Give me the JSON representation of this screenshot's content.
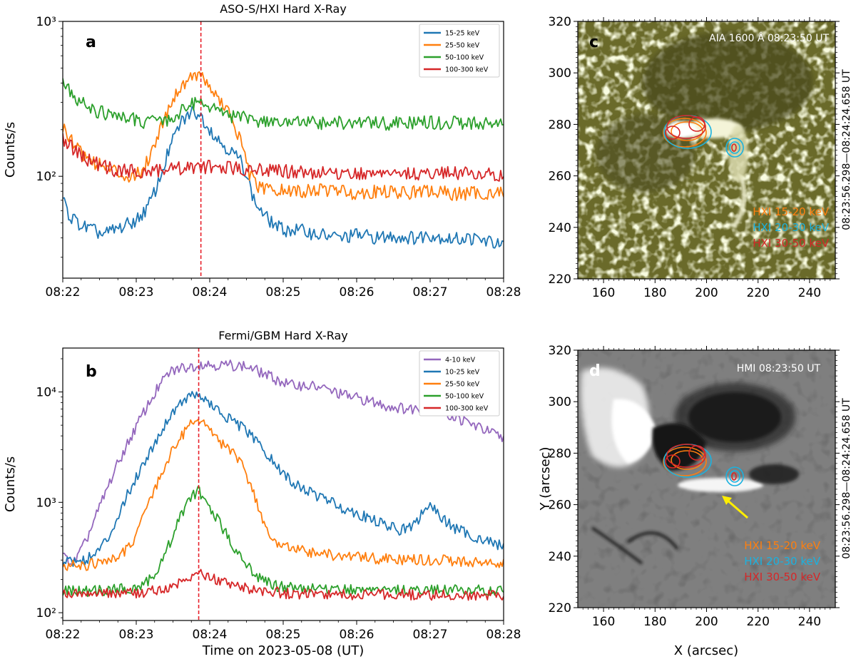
{
  "colors": {
    "c1": "#1f77b4",
    "c2": "#ff7f0e",
    "c3": "#2ca02c",
    "c4": "#d62728",
    "c5": "#9467bd",
    "hxi_15_20": "#ff7f0e",
    "hxi_20_30": "#1ab2e0",
    "hxi_30_50": "#d62728",
    "arrow": "#ffee00",
    "marker": "#e8202a"
  },
  "chart_data": [
    {
      "id": "a",
      "panel_label": "a",
      "type": "line",
      "title": "ASO-S/HXI Hard X-Ray",
      "xlabel": "",
      "ylabel": "Counts/s",
      "yscale": "log",
      "ylim": [
        22,
        1000
      ],
      "xlim": [
        0,
        6
      ],
      "xticks": [
        0,
        1,
        2,
        3,
        4,
        5,
        6
      ],
      "xtick_labels": [
        "08:22",
        "08:23",
        "08:24",
        "08:25",
        "08:26",
        "08:27",
        "08:28"
      ],
      "yticks": [
        100,
        1000
      ],
      "ytick_labels": [
        "10²",
        "10³"
      ],
      "marker_time": 1.88,
      "legend_position": "top-right",
      "series": [
        {
          "name": "15-25 keV",
          "color": "#1f77b4",
          "x": [
            0,
            0.1,
            0.25,
            0.4,
            0.55,
            0.7,
            0.85,
            1.0,
            1.15,
            1.3,
            1.45,
            1.6,
            1.75,
            1.85,
            1.95,
            2.1,
            2.25,
            2.4,
            2.5,
            2.6,
            2.75,
            2.9,
            3.0,
            3.2,
            3.5,
            3.8,
            4.0,
            4.3,
            4.5,
            4.8,
            5.0,
            5.3,
            5.5,
            5.8,
            6.0
          ],
          "y": [
            70,
            55,
            48,
            45,
            42,
            45,
            48,
            52,
            62,
            90,
            150,
            220,
            260,
            255,
            220,
            175,
            150,
            130,
            105,
            70,
            55,
            48,
            45,
            45,
            42,
            40,
            42,
            40,
            41,
            40,
            42,
            39,
            40,
            38,
            35
          ]
        },
        {
          "name": "25-50 keV",
          "color": "#ff7f0e",
          "x": [
            0,
            0.15,
            0.3,
            0.5,
            0.7,
            0.9,
            1.05,
            1.2,
            1.35,
            1.5,
            1.65,
            1.78,
            1.88,
            2.0,
            2.15,
            2.3,
            2.45,
            2.55,
            2.65,
            2.8,
            3.0,
            3.3,
            3.6,
            4.0,
            4.3,
            4.6,
            5.0,
            5.3,
            5.6,
            6.0
          ],
          "y": [
            210,
            165,
            135,
            118,
            108,
            100,
            104,
            140,
            220,
            320,
            400,
            460,
            440,
            380,
            300,
            240,
            150,
            100,
            85,
            82,
            80,
            80,
            82,
            78,
            80,
            78,
            80,
            77,
            78,
            78
          ]
        },
        {
          "name": "50-100 keV",
          "color": "#2ca02c",
          "x": [
            0,
            0.15,
            0.3,
            0.5,
            0.7,
            0.9,
            1.1,
            1.3,
            1.5,
            1.65,
            1.8,
            1.9,
            2.0,
            2.15,
            2.3,
            2.5,
            2.7,
            3.0,
            3.3,
            3.6,
            4.0,
            4.3,
            4.6,
            5.0,
            5.3,
            5.6,
            6.0
          ],
          "y": [
            390,
            330,
            290,
            260,
            245,
            235,
            225,
            225,
            240,
            270,
            300,
            310,
            285,
            260,
            245,
            235,
            228,
            222,
            222,
            220,
            222,
            220,
            220,
            222,
            220,
            222,
            220
          ]
        },
        {
          "name": "100-300 keV",
          "color": "#d62728",
          "x": [
            0,
            0.15,
            0.3,
            0.5,
            0.7,
            0.9,
            1.1,
            1.3,
            1.5,
            1.7,
            1.9,
            2.1,
            2.3,
            2.5,
            2.8,
            3.0,
            3.3,
            3.6,
            4.0,
            4.3,
            4.6,
            5.0,
            5.3,
            5.6,
            6.0
          ],
          "y": [
            175,
            150,
            130,
            118,
            110,
            108,
            108,
            110,
            112,
            114,
            115,
            113,
            112,
            112,
            110,
            108,
            106,
            105,
            104,
            105,
            104,
            104,
            105,
            104,
            103
          ]
        }
      ]
    },
    {
      "id": "b",
      "panel_label": "b",
      "type": "line",
      "title": "Fermi/GBM Hard X-Ray",
      "xlabel": "Time on 2023-05-08 (UT)",
      "ylabel": "Counts/s",
      "yscale": "log",
      "ylim": [
        85,
        25000
      ],
      "xlim": [
        0,
        6
      ],
      "xticks": [
        0,
        1,
        2,
        3,
        4,
        5,
        6
      ],
      "xtick_labels": [
        "08:22",
        "08:23",
        "08:24",
        "08:25",
        "08:26",
        "08:27",
        "08:28"
      ],
      "yticks": [
        100,
        1000,
        10000
      ],
      "ytick_labels": [
        "10²",
        "10³",
        "10⁴"
      ],
      "marker_time": 1.85,
      "legend_position": "top-right",
      "series": [
        {
          "name": "4-10 keV",
          "color": "#9467bd",
          "x": [
            0,
            0.15,
            0.3,
            0.5,
            0.7,
            0.9,
            1.1,
            1.3,
            1.45,
            1.6,
            1.75,
            1.9,
            2.1,
            2.3,
            2.5,
            2.7,
            2.9,
            3.1,
            3.3,
            3.5,
            3.8,
            4.1,
            4.4,
            4.7,
            5.0,
            5.3,
            5.6,
            6.0
          ],
          "y": [
            320,
            280,
            420,
            900,
            1900,
            3600,
            6500,
            11000,
            15000,
            16500,
            17000,
            18000,
            17500,
            17500,
            17000,
            15000,
            13000,
            11500,
            11500,
            11000,
            9500,
            8500,
            7500,
            7000,
            7200,
            6000,
            5000,
            3800
          ]
        },
        {
          "name": "10-25 keV",
          "color": "#1f77b4",
          "x": [
            0,
            0.2,
            0.4,
            0.6,
            0.8,
            1.0,
            1.2,
            1.4,
            1.55,
            1.7,
            1.85,
            2.0,
            2.2,
            2.4,
            2.6,
            2.8,
            3.0,
            3.2,
            3.4,
            3.6,
            3.8,
            4.0,
            4.2,
            4.4,
            4.6,
            4.8,
            4.95,
            5.1,
            5.3,
            5.5,
            5.75,
            6.0
          ],
          "y": [
            300,
            290,
            320,
            450,
            900,
            1700,
            3000,
            5200,
            7500,
            9000,
            9500,
            7800,
            6000,
            5000,
            3800,
            2600,
            1800,
            1400,
            1200,
            1050,
            900,
            800,
            700,
            620,
            560,
            620,
            950,
            800,
            600,
            520,
            450,
            400
          ]
        },
        {
          "name": "25-50 keV",
          "color": "#ff7f0e",
          "x": [
            0,
            0.3,
            0.6,
            0.8,
            1.0,
            1.15,
            1.3,
            1.45,
            1.6,
            1.75,
            1.85,
            2.0,
            2.15,
            2.3,
            2.45,
            2.6,
            2.75,
            2.9,
            3.1,
            3.4,
            3.7,
            4.0,
            4.3,
            4.6,
            5.0,
            5.3,
            5.6,
            6.0
          ],
          "y": [
            270,
            270,
            290,
            330,
            500,
            900,
            1600,
            2600,
            3800,
            5500,
            5800,
            4500,
            3500,
            2800,
            2200,
            1200,
            600,
            420,
            380,
            350,
            330,
            320,
            310,
            300,
            300,
            295,
            290,
            280
          ]
        },
        {
          "name": "50-100 keV",
          "color": "#2ca02c",
          "x": [
            0,
            0.3,
            0.6,
            0.9,
            1.1,
            1.3,
            1.45,
            1.6,
            1.75,
            1.85,
            1.95,
            2.1,
            2.25,
            2.4,
            2.55,
            2.7,
            2.9,
            3.1,
            3.4,
            3.7,
            4.0,
            4.4,
            4.8,
            5.2,
            5.6,
            6.0
          ],
          "y": [
            160,
            155,
            160,
            165,
            180,
            240,
            420,
            750,
            1150,
            1250,
            1000,
            700,
            480,
            340,
            250,
            200,
            175,
            170,
            165,
            165,
            162,
            162,
            160,
            160,
            162,
            160
          ]
        },
        {
          "name": "100-300 keV",
          "color": "#d62728",
          "x": [
            0,
            0.4,
            0.8,
            1.2,
            1.5,
            1.7,
            1.85,
            2.0,
            2.2,
            2.4,
            2.6,
            2.8,
            3.0,
            3.4,
            3.8,
            4.2,
            4.6,
            5.0,
            5.4,
            6.0
          ],
          "y": [
            150,
            148,
            150,
            155,
            175,
            205,
            230,
            210,
            190,
            170,
            160,
            155,
            150,
            148,
            147,
            146,
            146,
            145,
            145,
            143
          ]
        }
      ]
    },
    {
      "id": "c",
      "panel_label": "c",
      "type": "image",
      "image_title": "AIA 1600 Å 08:23:50 UT",
      "side_label": "08:23:56.298—08:24:24.658 UT",
      "xlabel": "",
      "ylabel": "",
      "xlim": [
        150,
        250
      ],
      "ylim": [
        220,
        320
      ],
      "xticks": [
        160,
        180,
        200,
        220,
        240
      ],
      "yticks": [
        220,
        240,
        260,
        280,
        300,
        320
      ],
      "contour_legend": [
        "HXI 15-20 keV",
        "HXI 20-30 keV",
        "HXI 30-50 keV"
      ]
    },
    {
      "id": "d",
      "panel_label": "d",
      "type": "image",
      "image_title": "HMI 08:23:50 UT",
      "side_label": "08:23:56.298—08:24:24.658 UT",
      "xlabel": "X (arcsec)",
      "ylabel": "Y (arcsec)",
      "xlim": [
        150,
        250
      ],
      "ylim": [
        220,
        320
      ],
      "xticks": [
        160,
        180,
        200,
        220,
        240
      ],
      "yticks": [
        220,
        240,
        260,
        280,
        300,
        320
      ],
      "contour_legend": [
        "HXI 15-20 keV",
        "HXI 20-30 keV",
        "HXI 30-50 keV"
      ]
    }
  ]
}
